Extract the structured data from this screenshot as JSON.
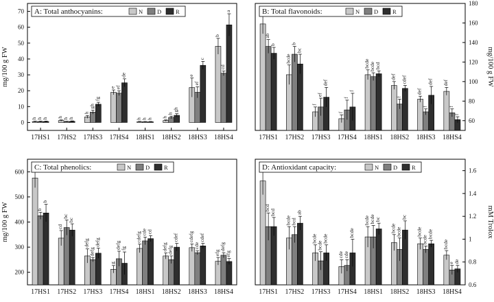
{
  "colors": {
    "N": "#c8c8c8",
    "D": "#7f7f7f",
    "R": "#2e2e2e",
    "axis": "#000000"
  },
  "legend_keys": [
    "N",
    "D",
    "R"
  ],
  "chart_data": [
    {
      "id": "A",
      "type": "bar",
      "title": "A: Total anthocyanins:",
      "ylabel": "mg/100 g FW",
      "yaxis_side": "left",
      "ylim": [
        -5,
        75
      ],
      "yticks": [
        0,
        10,
        20,
        30,
        40,
        50,
        60,
        70
      ],
      "categories": [
        "17HS1",
        "17HS2",
        "17HS3",
        "17HS4",
        "18HS1",
        "18HS2",
        "18HS3",
        "18HS4"
      ],
      "series": [
        {
          "name": "N",
          "values": [
            0.6,
            1.2,
            3.5,
            19.0,
            0.5,
            1.2,
            22.0,
            48.0
          ],
          "errors": [
            0.3,
            0.4,
            0.9,
            1.5,
            0.2,
            0.4,
            6.0,
            5.0
          ],
          "labels": [
            "h",
            "h",
            "h",
            "e",
            "h",
            "h",
            "e",
            "b"
          ]
        },
        {
          "name": "D",
          "values": [
            0.6,
            0.6,
            6.5,
            18.5,
            0.4,
            3.2,
            19.0,
            31.0
          ],
          "errors": [
            0.3,
            0.2,
            1.2,
            1.5,
            0.2,
            0.8,
            3.5,
            1.5
          ],
          "labels": [
            "h",
            "h",
            "gh",
            "ef",
            "h",
            "h",
            "ef",
            "cd"
          ]
        },
        {
          "name": "R",
          "values": [
            0.6,
            0.7,
            11.5,
            25.0,
            0.4,
            4.5,
            36.0,
            61.5
          ],
          "errors": [
            0.3,
            0.3,
            1.2,
            2.5,
            0.2,
            1.0,
            2.5,
            7.0
          ],
          "labels": [
            "h",
            "h",
            "fg",
            "de",
            "h",
            "gh",
            "c",
            "a"
          ]
        }
      ]
    },
    {
      "id": "B",
      "type": "bar",
      "title": "B: Total flavonoids:",
      "ylabel": "mg/100 g FW",
      "yaxis_side": "right",
      "ylim": [
        50,
        180
      ],
      "yticks": [
        60,
        80,
        100,
        120,
        140,
        160,
        180
      ],
      "categories": [
        "17HS1",
        "17HS2",
        "17HS3",
        "17HS4",
        "18HS1",
        "18HS2",
        "18HS3",
        "18HS4"
      ],
      "series": [
        {
          "name": "N",
          "values": [
            159,
            107,
            69,
            62,
            107,
            96,
            82,
            90
          ],
          "errors": [
            10,
            10,
            5,
            4,
            5,
            4,
            3,
            4
          ],
          "labels": [
            "a",
            "bcde",
            "f",
            "f",
            "bcde",
            "def",
            "def",
            "def"
          ]
        },
        {
          "name": "D",
          "values": [
            136,
            128,
            74,
            71,
            105,
            77,
            69,
            68
          ],
          "errors": [
            7,
            8,
            9,
            10,
            4,
            5,
            3,
            4
          ],
          "labels": [
            "ab",
            "b",
            "ef",
            "f",
            "bcde",
            "f",
            "f",
            "f"
          ]
        },
        {
          "name": "R",
          "values": [
            129,
            118,
            84,
            74,
            108,
            93,
            86,
            61
          ],
          "errors": [
            6,
            10,
            10,
            14,
            3,
            3,
            9,
            3
          ],
          "labels": [
            "b",
            "bc",
            "def",
            "f",
            "bcd",
            "cdef",
            "def",
            "f"
          ]
        }
      ]
    },
    {
      "id": "C",
      "type": "bar",
      "title": "C: Total phenolics:",
      "ylabel": "mg/100 g FW",
      "yaxis_side": "left",
      "ylim": [
        150,
        650
      ],
      "yticks": [
        200,
        300,
        400,
        500,
        600
      ],
      "categories": [
        "17HS1",
        "17HS2",
        "17HS3",
        "17HS4",
        "18HS1",
        "18HS2",
        "18HS3",
        "18HS4"
      ],
      "series": [
        {
          "name": "N",
          "values": [
            575,
            336,
            265,
            212,
            295,
            265,
            298,
            244
          ],
          "errors": [
            38,
            30,
            28,
            15,
            17,
            12,
            15,
            15
          ],
          "labels": [
            "a",
            "cd",
            "defg",
            "g",
            "cdefg",
            "defg",
            "cdefg",
            "efg"
          ]
        },
        {
          "name": "D",
          "values": [
            425,
            378,
            250,
            254,
            325,
            250,
            278,
            268
          ],
          "errors": [
            14,
            30,
            8,
            30,
            15,
            15,
            8,
            10
          ],
          "labels": [
            "b",
            "bc",
            "defg",
            "defg",
            "cde",
            "defg",
            "cde",
            "defg"
          ]
        },
        {
          "name": "R",
          "values": [
            436,
            368,
            276,
            236,
            334,
            300,
            305,
            243
          ],
          "errors": [
            35,
            25,
            20,
            45,
            12,
            15,
            10,
            12
          ],
          "labels": [
            "b",
            "bc",
            "defg",
            "fg",
            "cd",
            "cdef",
            "cdef",
            "efg"
          ]
        }
      ]
    },
    {
      "id": "D",
      "type": "bar",
      "title": "D: Antioxidant capacity:",
      "ylabel": "mM Trolox",
      "yaxis_side": "right",
      "ylim": [
        0.6,
        1.7
      ],
      "yticks": [
        0.6,
        0.8,
        1.0,
        1.2,
        1.4,
        1.6
      ],
      "categories": [
        "17HS1",
        "17HS2",
        "17HS3",
        "17HS4",
        "18HS1",
        "18HS2",
        "18HS3",
        "18HS4"
      ],
      "series": [
        {
          "name": "N",
          "values": [
            1.51,
            1.01,
            0.88,
            0.76,
            1.02,
            0.97,
            0.96,
            0.86
          ],
          "errors": [
            0.12,
            0.1,
            0.07,
            0.06,
            0.09,
            0.07,
            0.05,
            0.04
          ],
          "labels": [
            "a",
            "bcde",
            "bcde",
            "cde",
            "bcde",
            "bcde",
            "bcde",
            "bcde"
          ]
        },
        {
          "name": "D",
          "values": [
            1.11,
            1.04,
            0.81,
            0.77,
            1.02,
            0.91,
            0.91,
            0.73
          ],
          "errors": [
            0.12,
            0.07,
            0.08,
            0.05,
            0.1,
            0.1,
            0.03,
            0.04
          ],
          "labels": [
            "bcd",
            "bcd",
            "bcde",
            "cde",
            "bcde",
            "bcde",
            "bcde",
            "e"
          ]
        },
        {
          "name": "R",
          "values": [
            1.11,
            1.14,
            0.88,
            0.88,
            1.09,
            1.08,
            0.96,
            0.74
          ],
          "errors": [
            0.08,
            0.06,
            0.07,
            0.12,
            0.05,
            0.08,
            0.03,
            0.03
          ],
          "labels": [
            "bcd",
            "ab",
            "bcde",
            "bcde",
            "bc",
            "bc",
            "bcde",
            "de"
          ]
        }
      ]
    }
  ]
}
